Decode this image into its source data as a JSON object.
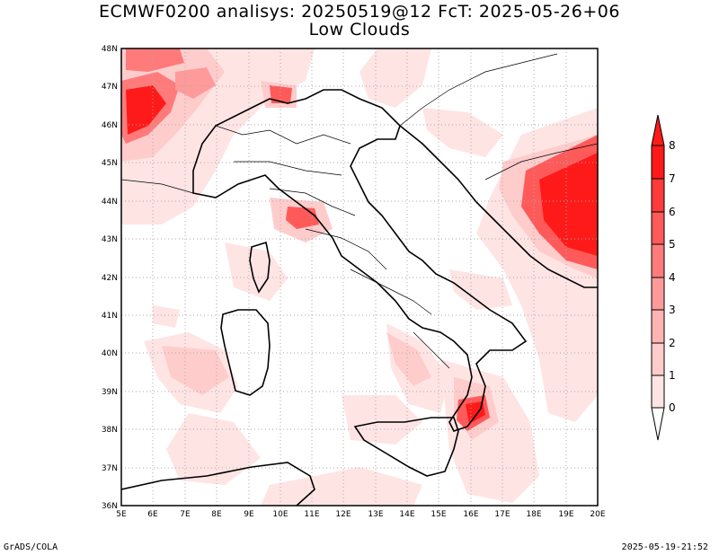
{
  "header": {
    "title_line1": "ECMWF0200 analisys: 20250519@12 FcT: 2025-05-26+06",
    "title_line2": "Low Clouds"
  },
  "footer": {
    "left": "GrADS/COLA",
    "right": "2025-05-19-21:52"
  },
  "map": {
    "lon_labels": [
      "5E",
      "6E",
      "7E",
      "8E",
      "9E",
      "10E",
      "11E",
      "12E",
      "13E",
      "14E",
      "15E",
      "16E",
      "17E",
      "18E",
      "19E",
      "20E"
    ],
    "lat_labels": [
      "48N",
      "47N",
      "46N",
      "45N",
      "44N",
      "43N",
      "42N",
      "41N",
      "40N",
      "39N",
      "38N",
      "37N",
      "36N"
    ],
    "lon_range": [
      5,
      20
    ],
    "lat_range": [
      36,
      48
    ],
    "gridlines": true
  },
  "colorbar": {
    "labels": [
      "8",
      "7",
      "6",
      "5",
      "4",
      "3",
      "2",
      "1",
      "0"
    ],
    "colors": [
      "#ff1a1a",
      "#ff3a3a",
      "#ff5a5a",
      "#ff7b7b",
      "#ff9a9a",
      "#ffb4b4",
      "#ffcccc",
      "#ffe4e4",
      "#ffffff"
    ]
  },
  "colors": {
    "level1": "#ffe4e4",
    "level2": "#ffcccc",
    "level3": "#ffb4b4",
    "level5": "#ff7b7b",
    "level8": "#ff1a1a"
  }
}
